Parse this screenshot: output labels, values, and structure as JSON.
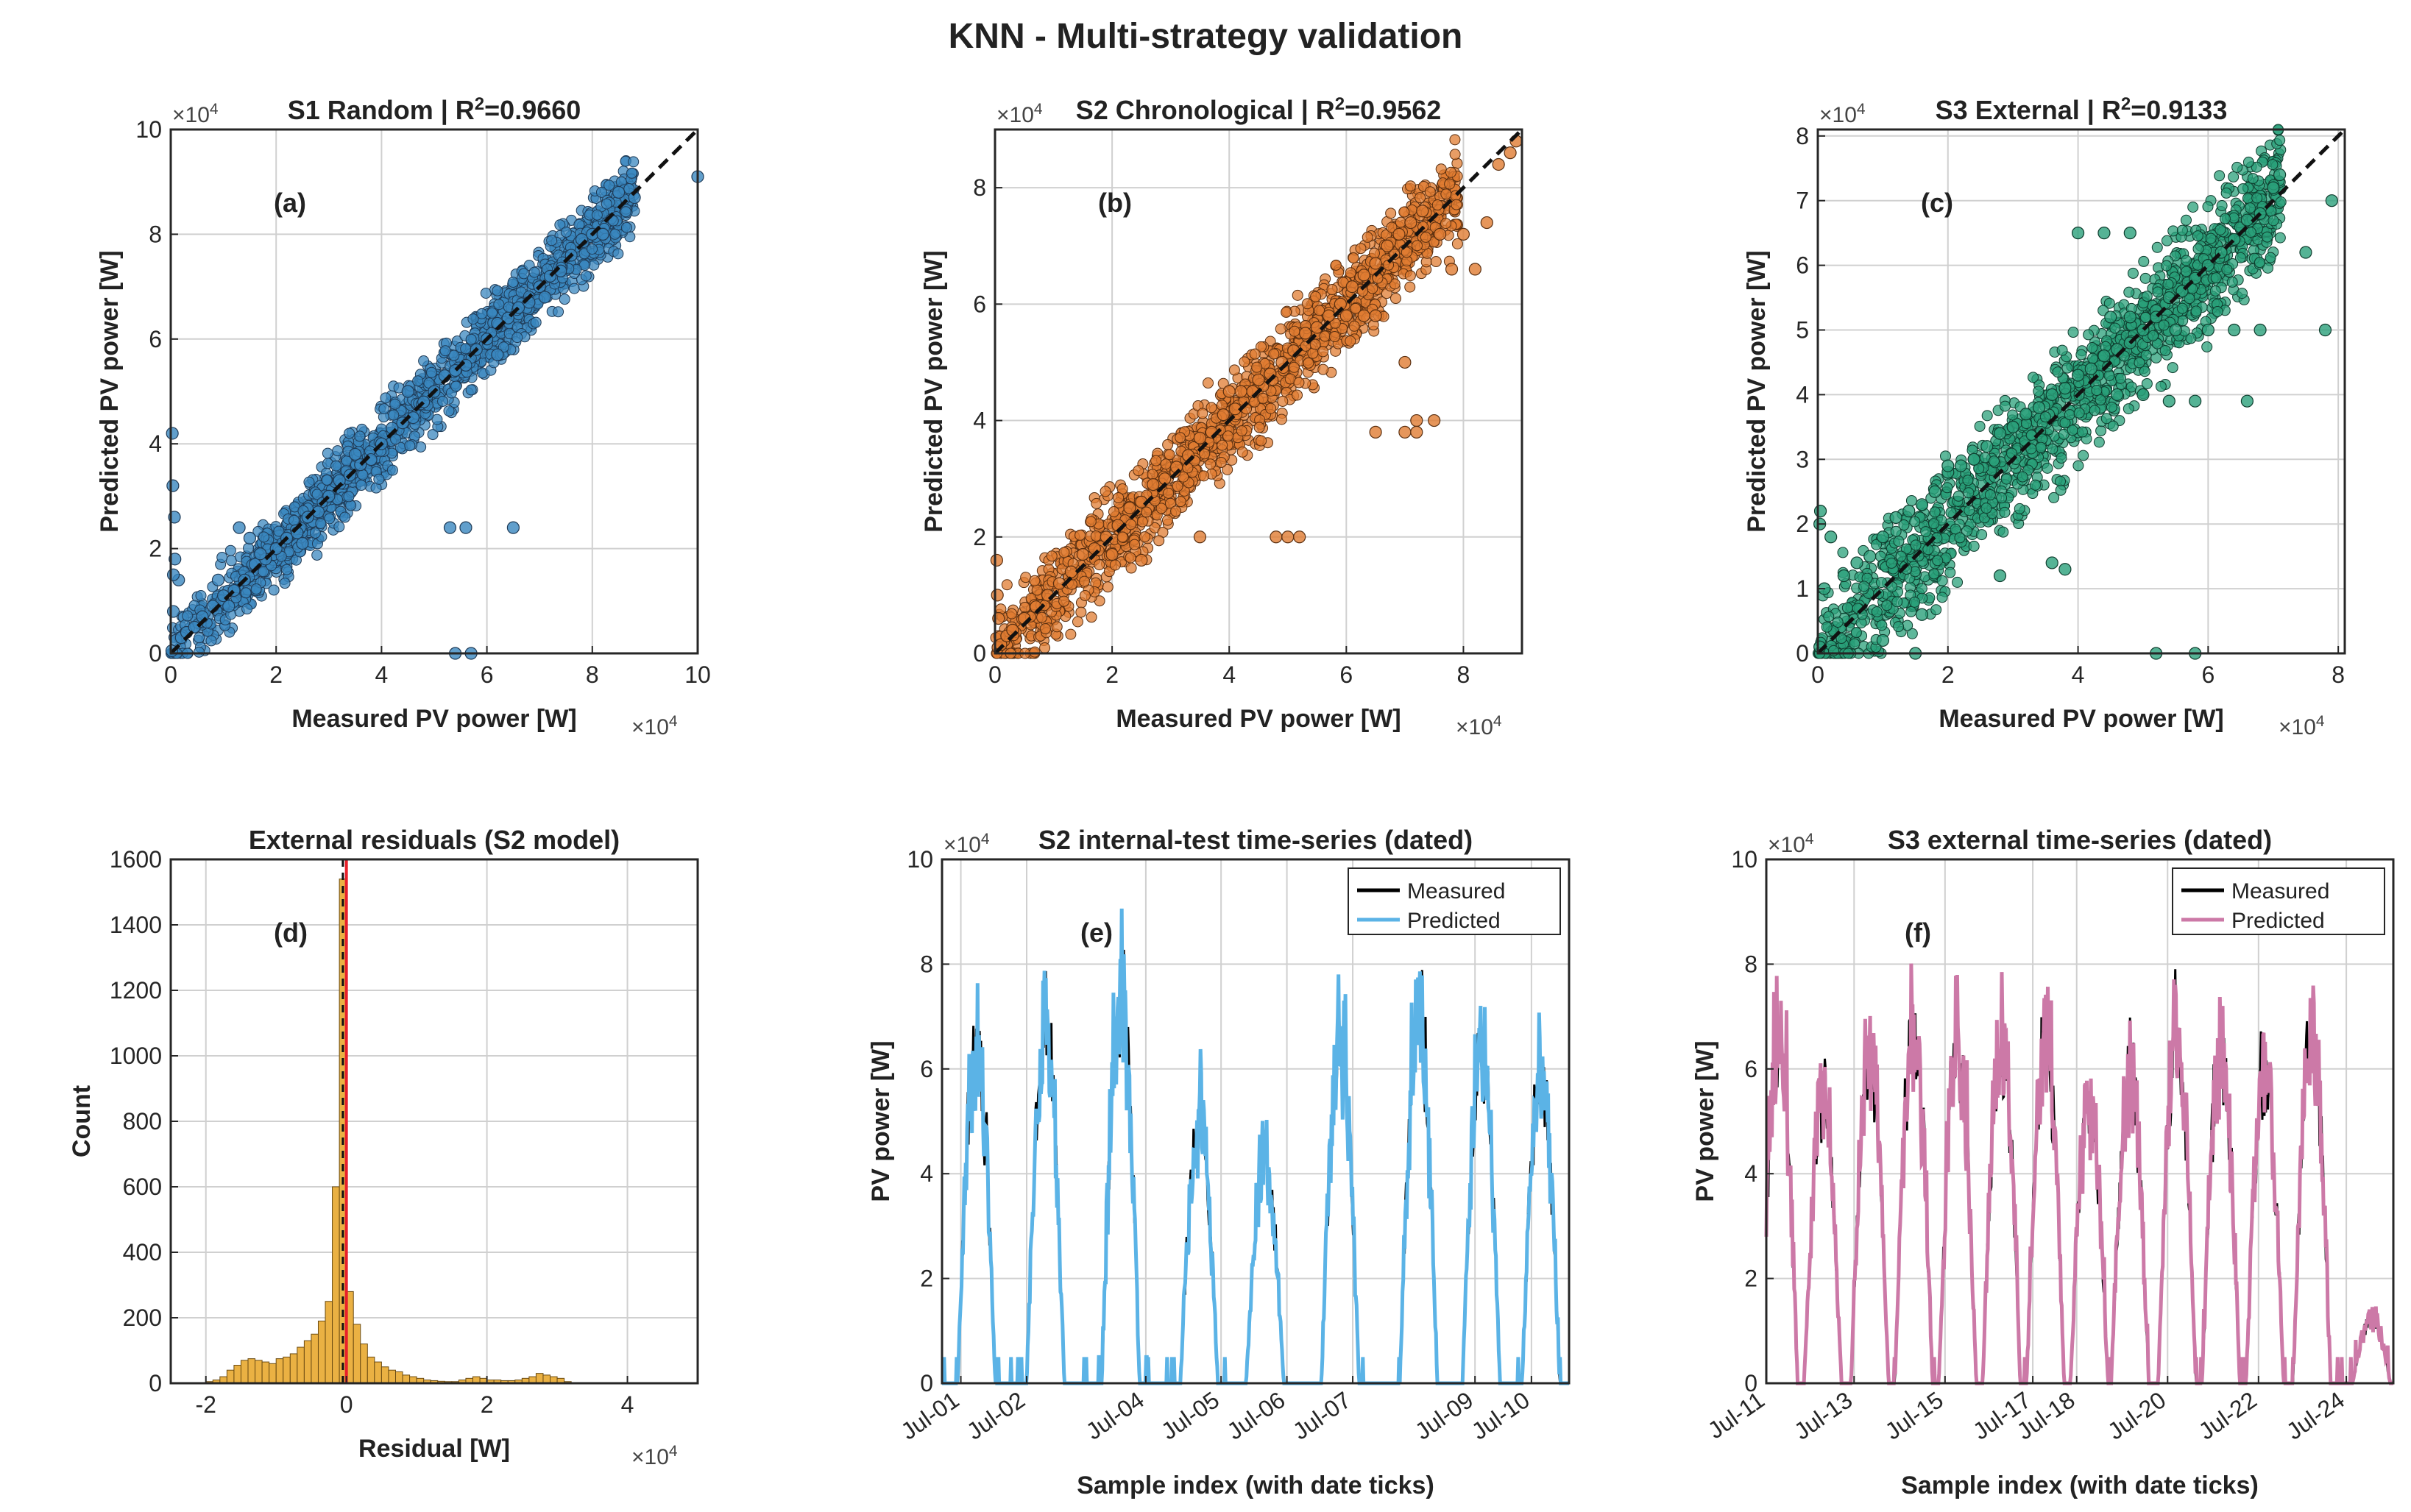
{
  "title": "KNN  -  Multi-strategy validation",
  "chart_data": [
    {
      "id": "a",
      "type": "scatter",
      "title": "S1 Random  |  R",
      "title_sup": "2",
      "title_tail": "=0.9660",
      "panel_label": "(a)",
      "xlabel": "Measured PV power [W]",
      "ylabel": "Predicted PV power [W]",
      "xlim": [
        0,
        100000
      ],
      "ylim": [
        0,
        100000
      ],
      "xticks": [
        0,
        20000,
        40000,
        60000,
        80000,
        100000
      ],
      "yticks": [
        0,
        20000,
        40000,
        60000,
        80000,
        100000
      ],
      "tick_labels_x": [
        "0",
        "2",
        "4",
        "6",
        "8",
        "10"
      ],
      "tick_labels_y": [
        "0",
        "2",
        "4",
        "6",
        "8",
        "10"
      ],
      "exponent": "×10",
      "exponent_power": "4",
      "color": "#3a87bf",
      "edge": "#1f3b57",
      "diag_max": 100000,
      "x": [
        200,
        500,
        1000,
        2000,
        3000,
        4500,
        6000,
        8000,
        10000,
        12000,
        14000,
        16000,
        18000,
        20000,
        22000,
        24000,
        26000,
        28000,
        30000,
        32000,
        34000,
        36000,
        38000,
        40000,
        42000,
        44000,
        46000,
        48000,
        50000,
        52000,
        54000,
        56000,
        58000,
        60000,
        62000,
        64000,
        66000,
        68000,
        70000,
        72000,
        74000,
        76000,
        78000,
        80000,
        82000,
        85000,
        88000,
        100000,
        300,
        400,
        800,
        1500,
        53000,
        56000,
        65000,
        54000,
        57000,
        13000,
        15000,
        11000,
        25000,
        35000,
        45000,
        62000,
        71000,
        9000,
        17000,
        500,
        700
      ],
      "y": [
        500,
        8000,
        2500,
        3000,
        4000,
        5000,
        7000,
        9000,
        11000,
        12000,
        14000,
        17000,
        18000,
        20000,
        22000,
        23000,
        26000,
        27000,
        30000,
        33000,
        34000,
        36000,
        37000,
        40000,
        43000,
        44000,
        45000,
        48000,
        50000,
        53000,
        54000,
        55000,
        58000,
        60000,
        63000,
        64000,
        66000,
        67000,
        70000,
        72000,
        73000,
        76000,
        79000,
        80000,
        80000,
        88000,
        87000,
        91000,
        42000,
        32000,
        18000,
        14000,
        24000,
        24000,
        24000,
        0,
        0,
        24000,
        22000,
        9000,
        21000,
        38000,
        50000,
        57000,
        68000,
        14000,
        19000,
        15000,
        26000
      ]
    },
    {
      "id": "b",
      "type": "scatter",
      "title": "S2 Chronological  |  R",
      "title_sup": "2",
      "title_tail": "=0.9562",
      "panel_label": "(b)",
      "xlabel": "Measured PV power [W]",
      "ylabel": "Predicted PV power [W]",
      "xlim": [
        0,
        90000
      ],
      "ylim": [
        0,
        90000
      ],
      "xticks": [
        0,
        20000,
        40000,
        60000,
        80000
      ],
      "yticks": [
        0,
        20000,
        40000,
        60000,
        80000
      ],
      "tick_labels_x": [
        "0",
        "2",
        "4",
        "6",
        "8"
      ],
      "tick_labels_y": [
        "0",
        "2",
        "4",
        "6",
        "8"
      ],
      "exponent": "×10",
      "exponent_power": "4",
      "color": "#e07c32",
      "edge": "#5a2f10",
      "diag_max": 90000,
      "x": [
        500,
        1000,
        2000,
        3000,
        5000,
        7000,
        9000,
        11000,
        13000,
        15000,
        17000,
        19000,
        21000,
        23000,
        25000,
        27000,
        29000,
        31000,
        33000,
        35000,
        37000,
        39000,
        41000,
        43000,
        45000,
        47000,
        49000,
        51000,
        53000,
        55000,
        57000,
        59000,
        61000,
        63000,
        65000,
        67000,
        69000,
        71000,
        73000,
        76000,
        80000,
        84000,
        88000,
        89000,
        60000,
        63000,
        65000,
        70000,
        72000,
        75000,
        48000,
        50000,
        52000,
        40000,
        42000,
        44000,
        65000,
        70000,
        72000,
        20000,
        25000,
        35000,
        300,
        400,
        600,
        78000,
        82000,
        86000
      ],
      "y": [
        1000,
        1500,
        3000,
        4000,
        6000,
        8000,
        10000,
        12000,
        14000,
        17000,
        18000,
        20000,
        22000,
        25000,
        26000,
        29000,
        30000,
        32000,
        34000,
        37000,
        38000,
        41000,
        42000,
        45000,
        47000,
        48000,
        50000,
        52000,
        55000,
        56000,
        58000,
        60000,
        63000,
        65000,
        67000,
        70000,
        72000,
        74000,
        76000,
        72000,
        72000,
        74000,
        86000,
        88000,
        58000,
        58000,
        58000,
        50000,
        40000,
        40000,
        20000,
        20000,
        20000,
        45000,
        45000,
        45000,
        38000,
        38000,
        38000,
        17000,
        16000,
        20000,
        16000,
        10000,
        6000,
        66000,
        66000,
        84000
      ]
    },
    {
      "id": "c",
      "type": "scatter",
      "title": "S3 External  |  R",
      "title_sup": "2",
      "title_tail": "=0.9133",
      "panel_label": "(c)",
      "xlabel": "Measured PV power [W]",
      "ylabel": "Predicted PV power [W]",
      "xlim": [
        0,
        81000
      ],
      "ylim": [
        0,
        81000
      ],
      "xticks": [
        0,
        20000,
        40000,
        60000,
        80000
      ],
      "yticks": [
        0,
        10000,
        20000,
        30000,
        40000,
        50000,
        60000,
        70000,
        80000
      ],
      "tick_labels_x": [
        "0",
        "2",
        "4",
        "6",
        "8"
      ],
      "tick_labels_y": [
        "0",
        "1",
        "2",
        "3",
        "4",
        "5",
        "6",
        "7",
        "8"
      ],
      "exponent": "×10",
      "exponent_power": "4",
      "color": "#2aa07a",
      "edge": "#0f3d2e",
      "diag_max": 81000,
      "x": [
        300,
        1000,
        2000,
        4000,
        6000,
        8000,
        10000,
        12000,
        14000,
        16000,
        18000,
        20000,
        22000,
        24000,
        26000,
        28000,
        30000,
        32000,
        34000,
        36000,
        38000,
        40000,
        42000,
        44000,
        46000,
        48000,
        50000,
        52000,
        54000,
        56000,
        58000,
        60000,
        62000,
        64000,
        66000,
        68000,
        70000,
        71000,
        45000,
        48000,
        52000,
        55000,
        60000,
        64000,
        68000,
        46000,
        50000,
        54000,
        58000,
        40000,
        44000,
        48000,
        36000,
        38000,
        52000,
        58000,
        20000,
        24000,
        28000,
        10000,
        15000,
        16000,
        300,
        400,
        75000,
        78000,
        79000,
        66000
      ],
      "y": [
        1000,
        10000,
        18000,
        12000,
        14000,
        15000,
        18000,
        21000,
        22000,
        23000,
        25000,
        28000,
        29000,
        30000,
        32000,
        34000,
        35000,
        37000,
        38000,
        40000,
        41000,
        43000,
        44000,
        46000,
        47000,
        48000,
        50000,
        53000,
        55000,
        56000,
        58000,
        60000,
        62000,
        64000,
        67000,
        68000,
        72000,
        74000,
        52000,
        52000,
        52000,
        50000,
        50000,
        50000,
        50000,
        40000,
        40000,
        39000,
        39000,
        65000,
        65000,
        65000,
        14000,
        13000,
        0,
        0,
        29000,
        30000,
        12000,
        2000,
        0,
        6000,
        20000,
        22000,
        62000,
        50000,
        70000,
        39000
      ]
    },
    {
      "id": "d",
      "type": "bar",
      "title": "External residuals (S2 model)",
      "panel_label": "(d)",
      "xlabel": "Residual [W]",
      "ylabel": "Count",
      "xlim": [
        -25000,
        50000
      ],
      "ylim": [
        0,
        1600
      ],
      "xticks": [
        -20000,
        0,
        20000,
        40000
      ],
      "yticks": [
        0,
        200,
        400,
        600,
        800,
        1000,
        1200,
        1400,
        1600
      ],
      "tick_labels_x": [
        "-2",
        "0",
        "2",
        "4"
      ],
      "tick_labels_y": [
        "0",
        "200",
        "400",
        "600",
        "800",
        "1000",
        "1200",
        "1400",
        "1600"
      ],
      "exponent": "×10",
      "exponent_power": "4",
      "color": "#eab143",
      "edge": "#6b4b12",
      "bin_width": 1000,
      "bin_starts": [
        -20000,
        -19000,
        -18000,
        -17000,
        -16000,
        -15000,
        -14000,
        -13000,
        -12000,
        -11000,
        -10000,
        -9000,
        -8000,
        -7000,
        -6000,
        -5000,
        -4000,
        -3000,
        -2000,
        -1000,
        0,
        1000,
        2000,
        3000,
        4000,
        5000,
        6000,
        7000,
        8000,
        9000,
        10000,
        11000,
        12000,
        13000,
        14000,
        15000,
        16000,
        17000,
        18000,
        19000,
        20000,
        21000,
        22000,
        23000,
        24000,
        25000,
        26000,
        27000,
        28000,
        29000,
        30000,
        31000
      ],
      "values": [
        5,
        10,
        20,
        40,
        55,
        70,
        75,
        70,
        65,
        60,
        75,
        80,
        90,
        110,
        130,
        150,
        190,
        250,
        600,
        1540,
        280,
        180,
        120,
        80,
        65,
        50,
        40,
        35,
        25,
        20,
        15,
        10,
        8,
        6,
        5,
        5,
        10,
        15,
        20,
        15,
        10,
        10,
        8,
        8,
        10,
        15,
        20,
        30,
        25,
        20,
        15,
        5
      ],
      "zero_line_x": 0
    },
    {
      "id": "e",
      "type": "line",
      "title": "S2 internal-test time-series (dated)",
      "panel_label": "(e)",
      "xlabel": "Sample index (with date ticks)",
      "ylabel": "PV power [W]",
      "ylim": [
        0,
        100000
      ],
      "yticks": [
        0,
        20000,
        40000,
        60000,
        80000,
        100000
      ],
      "tick_labels_y": [
        "0",
        "2",
        "4",
        "6",
        "8",
        "10"
      ],
      "exponent": "×10",
      "exponent_power": "4",
      "date_ticks": [
        "Jul-01",
        "Jul-02",
        "Jul-04",
        "Jul-05",
        "Jul-06",
        "Jul-07",
        "Jul-09",
        "Jul-10"
      ],
      "date_tick_pos": [
        0.03,
        0.135,
        0.325,
        0.445,
        0.55,
        0.655,
        0.85,
        0.94
      ],
      "day_peaks": [
        78000,
        82000,
        90000,
        59000,
        52000,
        78000,
        85000,
        77000,
        72000
      ],
      "day_centers": [
        0.055,
        0.165,
        0.285,
        0.41,
        0.515,
        0.635,
        0.76,
        0.86,
        0.955
      ],
      "series": [
        {
          "name": "Measured",
          "color": "#000000"
        },
        {
          "name": "Predicted",
          "color": "#5bb3e6"
        }
      ]
    },
    {
      "id": "f",
      "type": "line",
      "title": "S3 external time-series (dated)",
      "panel_label": "(f)",
      "xlabel": "Sample index (with date ticks)",
      "ylabel": "PV power [W]",
      "ylim": [
        0,
        100000
      ],
      "yticks": [
        0,
        20000,
        40000,
        60000,
        80000,
        100000
      ],
      "tick_labels_y": [
        "0",
        "2",
        "4",
        "6",
        "8",
        "10"
      ],
      "exponent": "×10",
      "exponent_power": "4",
      "date_ticks": [
        "Jul-11",
        "Jul-13",
        "Jul-15",
        "Jul-17",
        "Jul-18",
        "Jul-20",
        "Jul-22",
        "Jul-24"
      ],
      "date_tick_pos": [
        0.0,
        0.14,
        0.285,
        0.425,
        0.495,
        0.64,
        0.785,
        0.925
      ],
      "day_peaks": [
        80000,
        64000,
        76000,
        80000,
        77000,
        78000,
        78000,
        63000,
        70000,
        81000,
        76000,
        72000,
        80000,
        15000
      ],
      "day_centers": [
        0.02,
        0.09,
        0.165,
        0.235,
        0.305,
        0.375,
        0.445,
        0.515,
        0.58,
        0.655,
        0.725,
        0.795,
        0.87,
        0.965
      ],
      "series": [
        {
          "name": "Measured",
          "color": "#000000"
        },
        {
          "name": "Predicted",
          "color": "#cc79a7"
        }
      ]
    }
  ]
}
